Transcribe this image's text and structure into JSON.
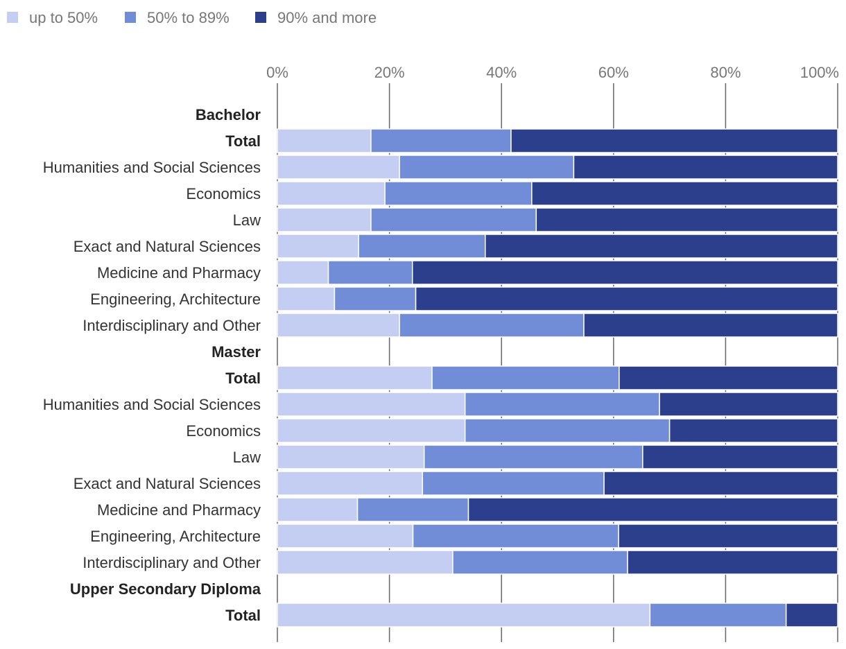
{
  "chart_data": {
    "type": "bar",
    "orientation": "horizontal",
    "stacked": true,
    "xlim": [
      0,
      100
    ],
    "x_ticks": [
      "0%",
      "20%",
      "40%",
      "60%",
      "80%",
      "100%"
    ],
    "legend_position": "top-left",
    "grid": true,
    "series": [
      {
        "name": "up to 50%",
        "color": "#c3cef2"
      },
      {
        "name": "50% to 89%",
        "color": "#728dd8"
      },
      {
        "name": "90% and more",
        "color": "#2b3f8c"
      }
    ],
    "rows": [
      {
        "label": "Bachelor",
        "header": true
      },
      {
        "label": "Total",
        "bold": true,
        "values": [
          16.7,
          25.0,
          58.3
        ]
      },
      {
        "label": "Humanities and Social Sciences",
        "values": [
          21.8,
          31.1,
          47.1
        ]
      },
      {
        "label": "Economics",
        "values": [
          19.2,
          26.2,
          54.6
        ]
      },
      {
        "label": "Law",
        "values": [
          16.7,
          29.5,
          53.8
        ]
      },
      {
        "label": "Exact and Natural Sciences",
        "values": [
          14.5,
          22.6,
          62.9
        ]
      },
      {
        "label": "Medicine and Pharmacy",
        "values": [
          9.1,
          15.0,
          75.9
        ]
      },
      {
        "label": "Engineering, Architecture",
        "values": [
          10.2,
          14.5,
          75.3
        ]
      },
      {
        "label": "Interdisciplinary and Other",
        "values": [
          21.8,
          32.9,
          45.3
        ]
      },
      {
        "label": "Master",
        "header": true
      },
      {
        "label": "Total",
        "bold": true,
        "values": [
          27.6,
          33.4,
          39.0
        ]
      },
      {
        "label": "Humanities and Social Sciences",
        "values": [
          33.5,
          34.7,
          31.8
        ]
      },
      {
        "label": "Economics",
        "values": [
          33.5,
          36.5,
          30.0
        ]
      },
      {
        "label": "Law",
        "values": [
          26.2,
          39.0,
          34.8
        ]
      },
      {
        "label": "Exact and Natural Sciences",
        "values": [
          25.9,
          32.4,
          41.7
        ]
      },
      {
        "label": "Medicine and Pharmacy",
        "values": [
          14.3,
          19.8,
          65.9
        ]
      },
      {
        "label": "Engineering, Architecture",
        "values": [
          24.2,
          36.7,
          39.1
        ]
      },
      {
        "label": "Interdisciplinary and Other",
        "values": [
          31.3,
          31.2,
          37.5
        ]
      },
      {
        "label": "Upper Secondary Diploma",
        "header": true
      },
      {
        "label": "Total",
        "bold": true,
        "values": [
          66.5,
          24.3,
          9.2
        ]
      }
    ]
  }
}
